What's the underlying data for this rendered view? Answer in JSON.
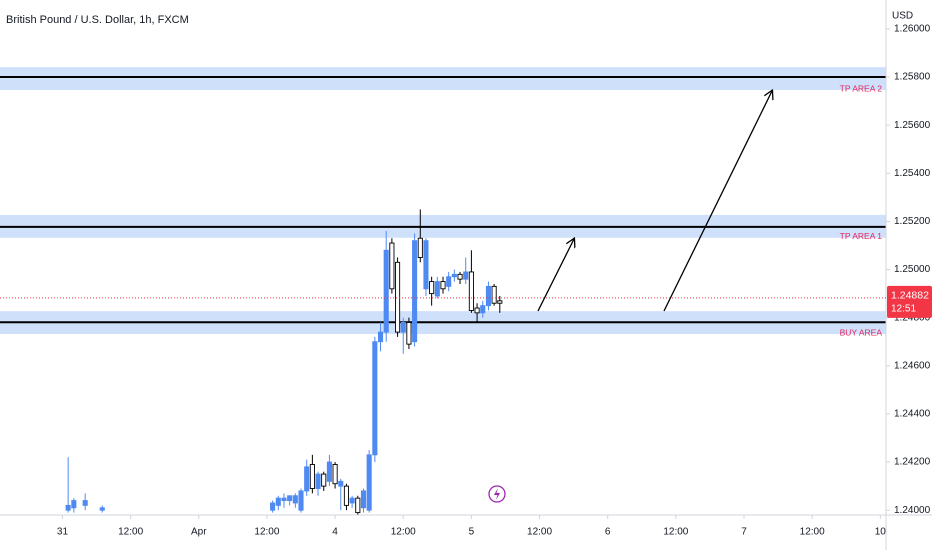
{
  "chart_data": {
    "type": "candlestick",
    "title": "British Pound / U.S. Dollar, 1h, FXCM",
    "currency": "USD",
    "up_color": "#4f8af2",
    "down_color": "#ffffff",
    "x": [
      1,
      2,
      4,
      7,
      37,
      38,
      39,
      40,
      41,
      42,
      43,
      44,
      45,
      46,
      47,
      48,
      49,
      50,
      51,
      52,
      53,
      54,
      55,
      56,
      57,
      58,
      59,
      60,
      61,
      62,
      63,
      64,
      65,
      66,
      67,
      68,
      69,
      70,
      71,
      72,
      73,
      74,
      75,
      76,
      77
    ],
    "open": [
      1.24,
      1.2401,
      1.2402,
      1.24,
      1.24,
      1.2402,
      1.2404,
      1.2404,
      1.2403,
      1.24,
      1.2408,
      1.2419,
      1.2409,
      1.2415,
      1.2412,
      1.2419,
      1.241,
      1.241,
      1.2403,
      1.2405,
      1.2401,
      1.24,
      1.2423,
      1.247,
      1.2474,
      1.2511,
      1.2503,
      1.2474,
      1.2478,
      1.247,
      1.2513,
      1.2492,
      1.2495,
      1.2489,
      1.2495,
      1.2493,
      1.2497,
      1.2498,
      1.2496,
      1.2499,
      1.2484,
      1.2482,
      1.2485,
      1.2493,
      1.2487
    ],
    "high": [
      1.2422,
      1.2405,
      1.2407,
      1.2402,
      1.2404,
      1.2406,
      1.2407,
      1.2406,
      1.2407,
      1.2409,
      1.2421,
      1.2423,
      1.2416,
      1.2416,
      1.2423,
      1.242,
      1.2413,
      1.2411,
      1.2406,
      1.2406,
      1.2409,
      1.2425,
      1.2472,
      1.2478,
      1.2516,
      1.2513,
      1.2505,
      1.248,
      1.248,
      1.2515,
      1.2525,
      1.2513,
      1.2497,
      1.2497,
      1.2497,
      1.2499,
      1.25,
      1.2499,
      1.2505,
      1.2508,
      1.2486,
      1.2487,
      1.2495,
      1.2494,
      1.2489
    ],
    "low": [
      1.2399,
      1.2399,
      1.24,
      1.2399,
      1.2399,
      1.24,
      1.2401,
      1.2402,
      1.2401,
      1.2399,
      1.2406,
      1.2407,
      1.2406,
      1.2408,
      1.241,
      1.2409,
      1.24,
      1.24,
      1.2401,
      1.2398,
      1.2399,
      1.2399,
      1.242,
      1.2466,
      1.247,
      1.249,
      1.2472,
      1.2465,
      1.2467,
      1.2468,
      1.2503,
      1.2489,
      1.2485,
      1.2488,
      1.249,
      1.2491,
      1.2495,
      1.2494,
      1.2494,
      1.2482,
      1.2478,
      1.248,
      1.2483,
      1.2485,
      1.2482
    ],
    "close": [
      1.2402,
      1.2404,
      1.2404,
      1.2401,
      1.2403,
      1.2405,
      1.2405,
      1.2406,
      1.2406,
      1.2408,
      1.2418,
      1.2409,
      1.2415,
      1.241,
      1.242,
      1.2411,
      1.2412,
      1.2402,
      1.2405,
      1.2399,
      1.2408,
      1.2423,
      1.247,
      1.2474,
      1.2508,
      1.2492,
      1.2474,
      1.2478,
      1.2469,
      1.2512,
      1.2505,
      1.2512,
      1.249,
      1.2495,
      1.2492,
      1.2497,
      1.2498,
      1.2496,
      1.2499,
      1.2483,
      1.2482,
      1.2485,
      1.2493,
      1.2486,
      1.2486
    ],
    "xlim": [
      -11,
      145
    ],
    "xticks": [
      {
        "value": 0,
        "label": "31"
      },
      {
        "value": 12,
        "label": "12:00"
      },
      {
        "value": 24,
        "label": "Apr"
      },
      {
        "value": 36,
        "label": "12:00"
      },
      {
        "value": 48,
        "label": "4"
      },
      {
        "value": 60,
        "label": "12:00"
      },
      {
        "value": 72,
        "label": "5"
      },
      {
        "value": 84,
        "label": "12:00"
      },
      {
        "value": 96,
        "label": "6"
      },
      {
        "value": 108,
        "label": "12:00"
      },
      {
        "value": 120,
        "label": "7"
      },
      {
        "value": 132,
        "label": "12:00"
      },
      {
        "value": 144,
        "label": "10"
      }
    ],
    "ylim": [
      1.2398,
      1.2612
    ],
    "yticks": [
      {
        "value": 1.26,
        "label": "1.26000"
      },
      {
        "value": 1.258,
        "label": "1.25800"
      },
      {
        "value": 1.256,
        "label": "1.25600"
      },
      {
        "value": 1.254,
        "label": "1.25400"
      },
      {
        "value": 1.252,
        "label": "1.25200"
      },
      {
        "value": 1.25,
        "label": "1.25000"
      },
      {
        "value": 1.248,
        "label": "1.24800"
      },
      {
        "value": 1.246,
        "label": "1.24600"
      },
      {
        "value": 1.244,
        "label": "1.24400"
      },
      {
        "value": 1.242,
        "label": "1.24200"
      },
      {
        "value": 1.24,
        "label": "1.24000"
      }
    ],
    "zones": [
      {
        "label": "TP AREA 2",
        "level": 1.258,
        "low": 1.25746,
        "high": 1.25841
      },
      {
        "label": "TP AREA 1",
        "level": 1.25177,
        "low": 1.25132,
        "high": 1.25227
      },
      {
        "label": "BUY AREA",
        "level": 1.24781,
        "low": 1.24732,
        "high": 1.24827
      }
    ],
    "current_price": {
      "value": 1.24882,
      "label": "1.24882",
      "countdown": "12:51"
    }
  }
}
